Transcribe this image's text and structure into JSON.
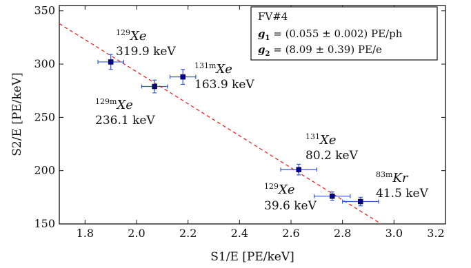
{
  "chart_data": {
    "type": "scatter",
    "xlabel": "S1/E [PE/keV]",
    "ylabel": "S2/E [PE/keV]",
    "xlim": [
      1.7,
      3.2
    ],
    "ylim": [
      150,
      355
    ],
    "xticks": [
      "1.8",
      "2.0",
      "2.2",
      "2.4",
      "2.6",
      "2.8",
      "3.0",
      "3.2"
    ],
    "yticks": [
      "150",
      "200",
      "250",
      "300",
      "350"
    ],
    "grid": false,
    "points": [
      {
        "x": 1.9,
        "y": 302,
        "xerr": 0.05,
        "yerr": 7,
        "mass": "129",
        "isotope": "Xe",
        "energy": "319.9 keV"
      },
      {
        "x": 2.07,
        "y": 279,
        "xerr": 0.05,
        "yerr": 6,
        "mass": "129m",
        "isotope": "Xe",
        "energy": "236.1 keV"
      },
      {
        "x": 2.18,
        "y": 288,
        "xerr": 0.05,
        "yerr": 7,
        "mass": "131m",
        "isotope": "Xe",
        "energy": "163.9 keV"
      },
      {
        "x": 2.63,
        "y": 201,
        "xerr": 0.07,
        "yerr": 5,
        "mass": "131",
        "isotope": "Xe",
        "energy": "80.2 keV"
      },
      {
        "x": 2.76,
        "y": 176,
        "xerr": 0.07,
        "yerr": 4,
        "mass": "129",
        "isotope": "Xe",
        "energy": "39.6 keV"
      },
      {
        "x": 2.87,
        "y": 171,
        "xerr": 0.07,
        "yerr": 4,
        "mass": "83m",
        "isotope": "Kr",
        "energy": "41.5 keV"
      }
    ],
    "fit_line": {
      "x": [
        1.7,
        2.95
      ],
      "y": [
        338,
        150
      ],
      "style": "dashed",
      "color": "#ee2222"
    },
    "marker_color": "#00008b",
    "errorbar_color": "#3355dd",
    "legend": {
      "title": "FV#4",
      "g1_symbol": "g",
      "g1_sub": "1",
      "g1_text": " = (0.055 ± 0.002) PE/ph",
      "g2_symbol": "g",
      "g2_sub": "2",
      "g2_text": " = (8.09 ± 0.39) PE/e",
      "placement": "top-right"
    }
  }
}
